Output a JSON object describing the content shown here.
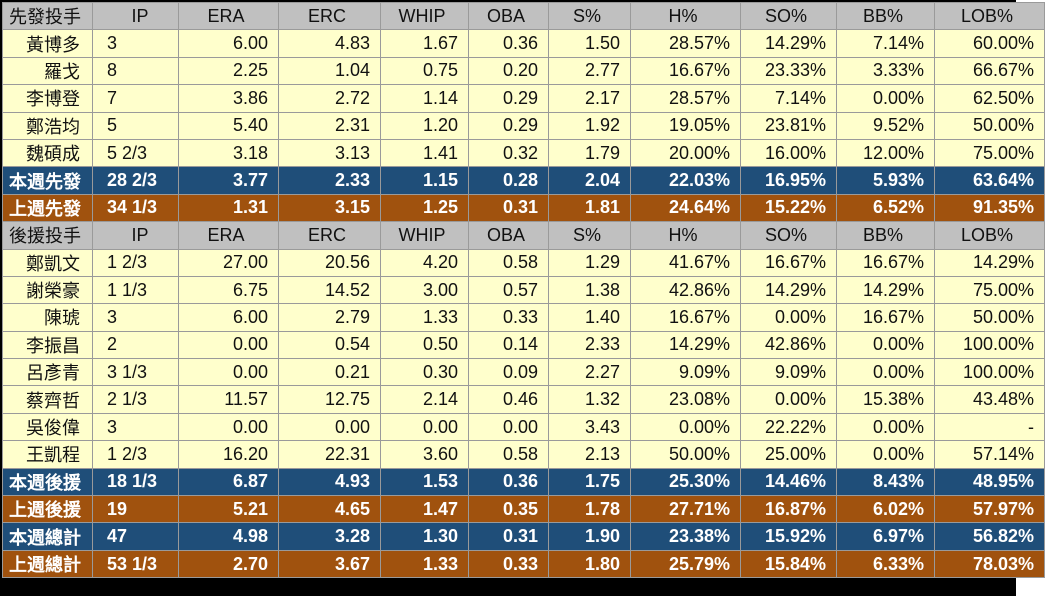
{
  "columns": [
    "IP",
    "ERA",
    "ERC",
    "WHIP",
    "OBA",
    "S%",
    "H%",
    "SO%",
    "BB%",
    "LOB%"
  ],
  "starters": {
    "header": "先發投手",
    "rows": [
      {
        "name": "黃博多",
        "vals": [
          "3",
          "6.00",
          "4.83",
          "1.67",
          "0.36",
          "1.50",
          "28.57%",
          "14.29%",
          "7.14%",
          "60.00%"
        ]
      },
      {
        "name": "羅戈",
        "vals": [
          "8",
          "2.25",
          "1.04",
          "0.75",
          "0.20",
          "2.77",
          "16.67%",
          "23.33%",
          "3.33%",
          "66.67%"
        ]
      },
      {
        "name": "李博登",
        "vals": [
          "7",
          "3.86",
          "2.72",
          "1.14",
          "0.29",
          "2.17",
          "28.57%",
          "7.14%",
          "0.00%",
          "62.50%"
        ]
      },
      {
        "name": "鄭浩均",
        "vals": [
          "5",
          "5.40",
          "2.31",
          "1.20",
          "0.29",
          "1.92",
          "19.05%",
          "23.81%",
          "9.52%",
          "50.00%"
        ]
      },
      {
        "name": "魏碩成",
        "vals": [
          "5 2/3",
          "3.18",
          "3.13",
          "1.41",
          "0.32",
          "1.79",
          "20.00%",
          "16.00%",
          "12.00%",
          "75.00%"
        ]
      }
    ],
    "this_week": {
      "name": "本週先發",
      "vals": [
        "28 2/3",
        "3.77",
        "2.33",
        "1.15",
        "0.28",
        "2.04",
        "22.03%",
        "16.95%",
        "5.93%",
        "63.64%"
      ]
    },
    "last_week": {
      "name": "上週先發",
      "vals": [
        "34 1/3",
        "1.31",
        "3.15",
        "1.25",
        "0.31",
        "1.81",
        "24.64%",
        "15.22%",
        "6.52%",
        "91.35%"
      ]
    }
  },
  "relievers": {
    "header": "後援投手",
    "rows": [
      {
        "name": "鄭凱文",
        "vals": [
          "1 2/3",
          "27.00",
          "20.56",
          "4.20",
          "0.58",
          "1.29",
          "41.67%",
          "16.67%",
          "16.67%",
          "14.29%"
        ]
      },
      {
        "name": "謝榮豪",
        "vals": [
          "1 1/3",
          "6.75",
          "14.52",
          "3.00",
          "0.57",
          "1.38",
          "42.86%",
          "14.29%",
          "14.29%",
          "75.00%"
        ]
      },
      {
        "name": "陳琥",
        "vals": [
          "3",
          "6.00",
          "2.79",
          "1.33",
          "0.33",
          "1.40",
          "16.67%",
          "0.00%",
          "16.67%",
          "50.00%"
        ]
      },
      {
        "name": "李振昌",
        "vals": [
          "2",
          "0.00",
          "0.54",
          "0.50",
          "0.14",
          "2.33",
          "14.29%",
          "42.86%",
          "0.00%",
          "100.00%"
        ]
      },
      {
        "name": "呂彥青",
        "vals": [
          "3 1/3",
          "0.00",
          "0.21",
          "0.30",
          "0.09",
          "2.27",
          "9.09%",
          "9.09%",
          "0.00%",
          "100.00%"
        ]
      },
      {
        "name": "蔡齊哲",
        "vals": [
          "2 1/3",
          "11.57",
          "12.75",
          "2.14",
          "0.46",
          "1.32",
          "23.08%",
          "0.00%",
          "15.38%",
          "43.48%"
        ]
      },
      {
        "name": "吳俊偉",
        "vals": [
          "3",
          "0.00",
          "0.00",
          "0.00",
          "0.00",
          "3.43",
          "0.00%",
          "22.22%",
          "0.00%",
          "-"
        ]
      },
      {
        "name": "王凱程",
        "vals": [
          "1 2/3",
          "16.20",
          "22.31",
          "3.60",
          "0.58",
          "2.13",
          "50.00%",
          "25.00%",
          "0.00%",
          "57.14%"
        ]
      }
    ],
    "this_week": {
      "name": "本週後援",
      "vals": [
        "18 1/3",
        "6.87",
        "4.93",
        "1.53",
        "0.36",
        "1.75",
        "25.30%",
        "14.46%",
        "8.43%",
        "48.95%"
      ]
    },
    "last_week": {
      "name": "上週後援",
      "vals": [
        "19",
        "5.21",
        "4.65",
        "1.47",
        "0.35",
        "1.78",
        "27.71%",
        "16.87%",
        "6.02%",
        "57.97%"
      ]
    }
  },
  "totals": {
    "this_week": {
      "name": "本週總計",
      "vals": [
        "47",
        "4.98",
        "3.28",
        "1.30",
        "0.31",
        "1.90",
        "23.38%",
        "15.92%",
        "6.97%",
        "56.82%"
      ]
    },
    "last_week": {
      "name": "上週總計",
      "vals": [
        "53 1/3",
        "2.70",
        "3.67",
        "1.33",
        "0.33",
        "1.80",
        "25.79%",
        "15.84%",
        "6.33%",
        "78.03%"
      ]
    }
  },
  "colors": {
    "header_bg": "#c0c0c0",
    "row_bg": "#ffffcc",
    "this_week_bg": "#1f4e79",
    "last_week_bg": "#a0520e"
  }
}
